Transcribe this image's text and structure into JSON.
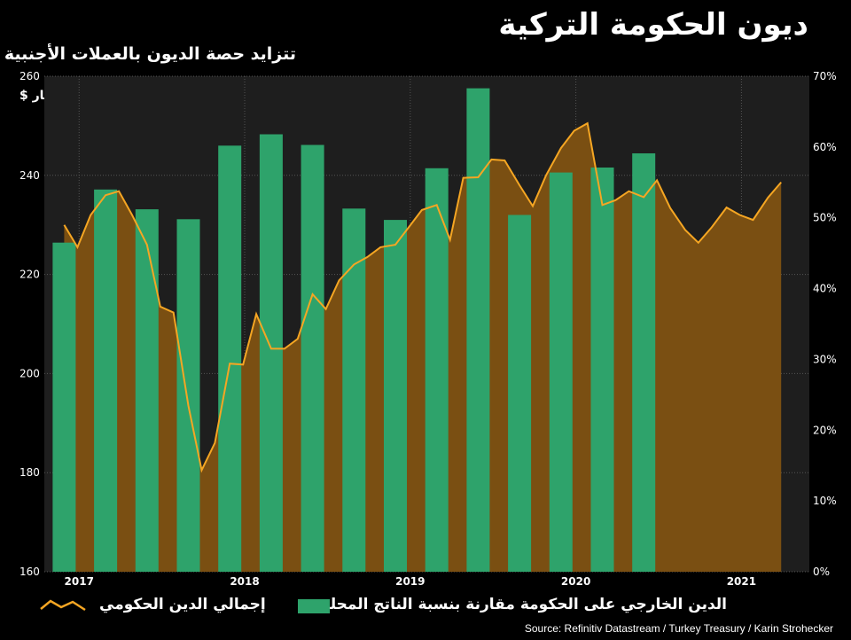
{
  "title": "ديون الحكومة التركية",
  "subtitle": "تتزايد حصة الديون بالعملات الأجنبية",
  "unit_label": "مليار $",
  "source": "Source: Refinitiv Datastream / Turkey Treasury / Karin Strohecker",
  "colors": {
    "background": "#000000",
    "plot_background": "#1e1e1e",
    "bar": "#2ea36b",
    "area_fill": "#7a4f12",
    "line": "#f5a623",
    "grid": "#555555"
  },
  "chart_data": {
    "type": "bar+area",
    "title": "ديون الحكومة التركية",
    "subtitle": "تتزايد حصة الديون بالعملات الأجنبية",
    "x_tick_labels": [
      "2017",
      "2018",
      "2019",
      "2020",
      "2021"
    ],
    "left_axis": {
      "label": "مليار $",
      "ticks": [
        160,
        180,
        200,
        220,
        240,
        260
      ],
      "range": [
        160,
        260
      ]
    },
    "right_axis": {
      "ticks": [
        "0%",
        "10%",
        "20%",
        "30%",
        "40%",
        "50%",
        "60%",
        "70%"
      ],
      "range": [
        0,
        70
      ]
    },
    "grid": true,
    "legend_position": "bottom",
    "series": [
      {
        "name": "الدين الخارجي على الحكومة مقارنة بنسبة الناتج المحلي",
        "kind": "bar",
        "axis": "right",
        "unit": "%",
        "x": [
          2016.92,
          2017.17,
          2017.42,
          2017.67,
          2017.92,
          2018.17,
          2018.42,
          2018.67,
          2018.92,
          2019.17,
          2019.42,
          2019.67,
          2019.92,
          2020.17,
          2020.42,
          2020.67,
          2020.92
        ],
        "values": [
          46.5,
          54,
          51.2,
          49.8,
          60.2,
          61.8,
          60.3,
          51.3,
          49.7,
          57,
          68.3,
          50.4,
          56.4,
          57.1,
          59.1,
          null,
          null
        ]
      },
      {
        "name": "إجمالي الدين الحكومي",
        "kind": "area",
        "axis": "left",
        "unit": "مليار $",
        "x": [
          2016.92,
          2017.0,
          2017.08,
          2017.17,
          2017.25,
          2017.33,
          2017.42,
          2017.5,
          2017.58,
          2017.67,
          2017.75,
          2017.83,
          2017.92,
          2018.0,
          2018.08,
          2018.17,
          2018.25,
          2018.33,
          2018.42,
          2018.5,
          2018.58,
          2018.67,
          2018.75,
          2018.83,
          2018.92,
          2019.0,
          2019.08,
          2019.17,
          2019.25,
          2019.33,
          2019.42,
          2019.5,
          2019.58,
          2019.67,
          2019.75,
          2019.83,
          2019.92,
          2020.0,
          2020.08,
          2020.17,
          2020.25,
          2020.33,
          2020.42,
          2020.5,
          2020.58,
          2020.67,
          2020.75,
          2020.83,
          2020.92,
          2021.0,
          2021.08,
          2021.17,
          2021.25
        ],
        "values": [
          230,
          225.5,
          232,
          236,
          236.8,
          232,
          226,
          213.5,
          212.3,
          193.5,
          180.5,
          186,
          202,
          201.8,
          212,
          205,
          205,
          207,
          216,
          213,
          218.8,
          222,
          223.5,
          225.5,
          226,
          229.5,
          233,
          234,
          227,
          239.5,
          239.6,
          243.2,
          243,
          238,
          233.8,
          240,
          245.5,
          249,
          250.5,
          234,
          235,
          236.8,
          235.6,
          239,
          233.4,
          229,
          226.4,
          229.5,
          233.5,
          232,
          231,
          235.5,
          238.6
        ]
      }
    ]
  },
  "legend": {
    "bar_label": "الدين الخارجي على الحكومة مقارنة بنسبة الناتج المحلي",
    "line_label": "إجمالي الدين الحكومي"
  }
}
